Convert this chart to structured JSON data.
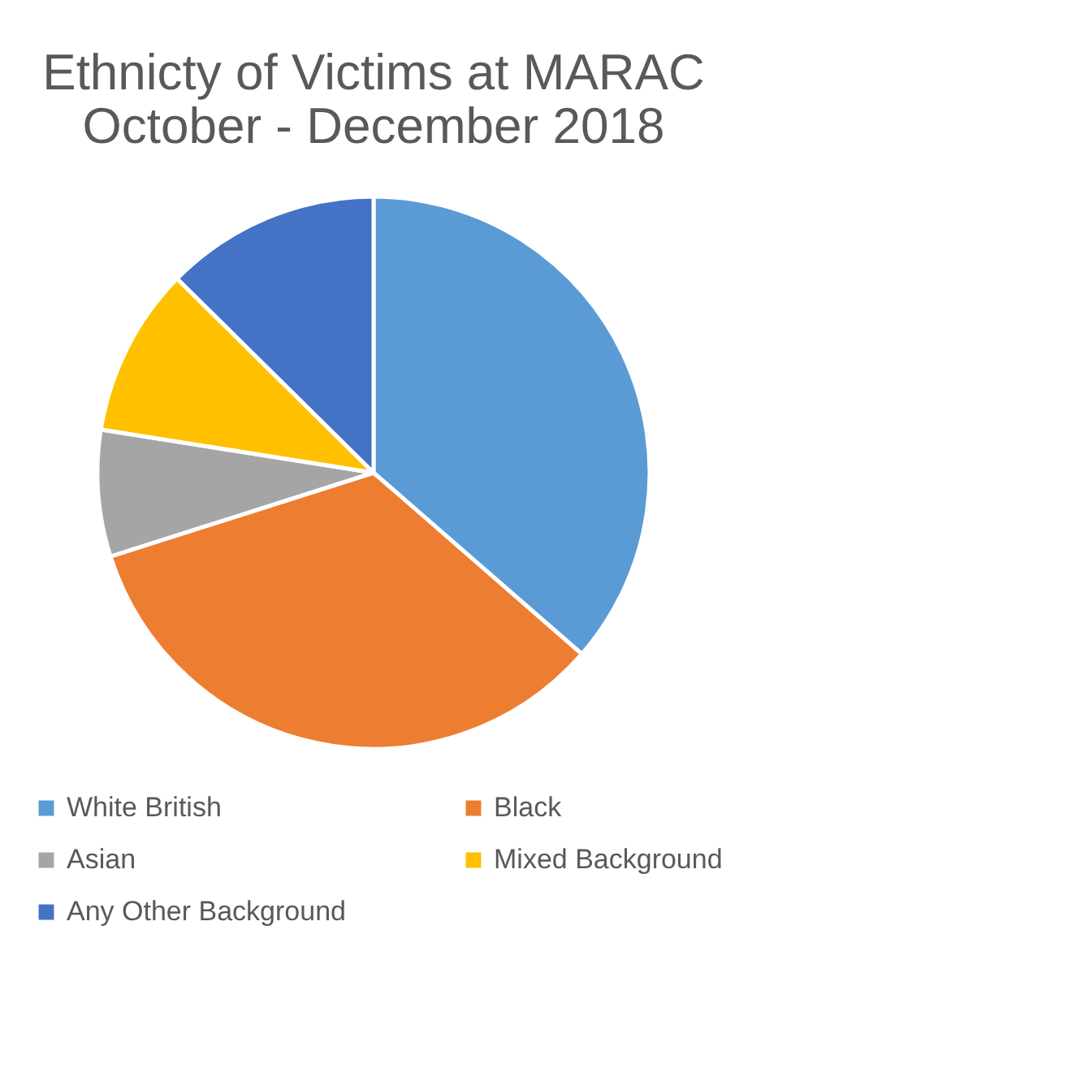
{
  "chart_data": {
    "type": "pie",
    "title": "Ethnicty of Victims at MARAC\nOctober - December 2018",
    "categories": [
      "White British",
      "Black",
      "Asian",
      "Mixed Background",
      "Any Other Background"
    ],
    "values": [
      36.4,
      33.7,
      7.4,
      9.9,
      12.6
    ],
    "colors": [
      "#5b9bd5",
      "#ed7d31",
      "#a5a5a5",
      "#ffc000",
      "#4472c4"
    ],
    "legend": "bottom"
  }
}
